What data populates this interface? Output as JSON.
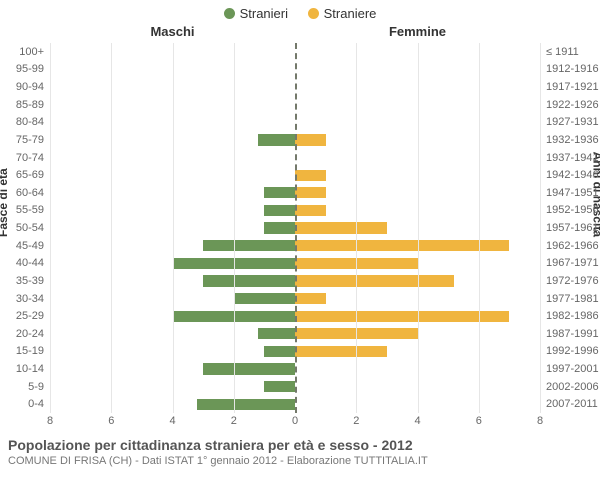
{
  "legend": {
    "male": {
      "label": "Stranieri",
      "color": "#6b9657"
    },
    "female": {
      "label": "Straniere",
      "color": "#f0b53f"
    }
  },
  "headers": {
    "left": "Maschi",
    "right": "Femmine"
  },
  "axis_titles": {
    "left": "Fasce di età",
    "right": "Anni di nascita"
  },
  "chart": {
    "type": "population-pyramid",
    "xmax": 8,
    "xticks": [
      8,
      6,
      4,
      2,
      0,
      2,
      4,
      6,
      8
    ],
    "grid_color": "#e6e6e6",
    "zero_line_color": "#74796b",
    "background_color": "#ffffff",
    "bar_left_color": "#6b9657",
    "bar_right_color": "#f0b53f",
    "label_fontsize": 11,
    "rows": [
      {
        "age": "100+",
        "birth": "≤ 1911",
        "m": 0,
        "f": 0
      },
      {
        "age": "95-99",
        "birth": "1912-1916",
        "m": 0,
        "f": 0
      },
      {
        "age": "90-94",
        "birth": "1917-1921",
        "m": 0,
        "f": 0
      },
      {
        "age": "85-89",
        "birth": "1922-1926",
        "m": 0,
        "f": 0
      },
      {
        "age": "80-84",
        "birth": "1927-1931",
        "m": 0,
        "f": 0
      },
      {
        "age": "75-79",
        "birth": "1932-1936",
        "m": 1.2,
        "f": 1
      },
      {
        "age": "70-74",
        "birth": "1937-1941",
        "m": 0,
        "f": 0
      },
      {
        "age": "65-69",
        "birth": "1942-1946",
        "m": 0,
        "f": 1
      },
      {
        "age": "60-64",
        "birth": "1947-1951",
        "m": 1,
        "f": 1
      },
      {
        "age": "55-59",
        "birth": "1952-1956",
        "m": 1,
        "f": 1
      },
      {
        "age": "50-54",
        "birth": "1957-1961",
        "m": 1,
        "f": 3
      },
      {
        "age": "45-49",
        "birth": "1962-1966",
        "m": 3,
        "f": 7
      },
      {
        "age": "40-44",
        "birth": "1967-1971",
        "m": 4,
        "f": 4
      },
      {
        "age": "35-39",
        "birth": "1972-1976",
        "m": 3,
        "f": 5.2
      },
      {
        "age": "30-34",
        "birth": "1977-1981",
        "m": 2,
        "f": 1
      },
      {
        "age": "25-29",
        "birth": "1982-1986",
        "m": 4,
        "f": 7
      },
      {
        "age": "20-24",
        "birth": "1987-1991",
        "m": 1.2,
        "f": 4
      },
      {
        "age": "15-19",
        "birth": "1992-1996",
        "m": 1,
        "f": 3
      },
      {
        "age": "10-14",
        "birth": "1997-2001",
        "m": 3,
        "f": 0
      },
      {
        "age": "5-9",
        "birth": "2002-2006",
        "m": 1,
        "f": 0
      },
      {
        "age": "0-4",
        "birth": "2007-2011",
        "m": 3.2,
        "f": 0
      }
    ]
  },
  "footer": {
    "title": "Popolazione per cittadinanza straniera per età e sesso - 2012",
    "subtitle": "COMUNE DI FRISA (CH) - Dati ISTAT 1° gennaio 2012 - Elaborazione TUTTITALIA.IT"
  }
}
